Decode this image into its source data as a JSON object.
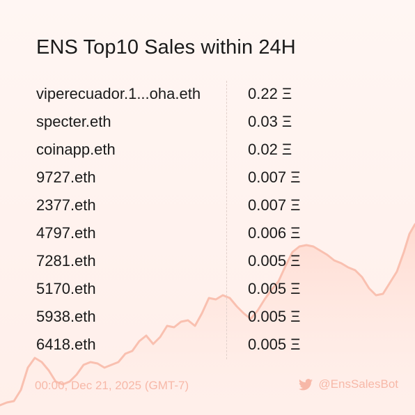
{
  "title": "ENS Top10 Sales within 24H",
  "currency_symbol": "Ξ",
  "sales": [
    {
      "name": "viperecuador.1...oha.eth",
      "price": "0.22 Ξ"
    },
    {
      "name": "specter.eth",
      "price": "0.03 Ξ"
    },
    {
      "name": "coinapp.eth",
      "price": "0.02 Ξ"
    },
    {
      "name": "9727.eth",
      "price": "0.007 Ξ"
    },
    {
      "name": "2377.eth",
      "price": "0.007 Ξ"
    },
    {
      "name": "4797.eth",
      "price": "0.006 Ξ"
    },
    {
      "name": "7281.eth",
      "price": "0.005 Ξ"
    },
    {
      "name": "5170.eth",
      "price": "0.005 Ξ"
    },
    {
      "name": "5938.eth",
      "price": "0.005 Ξ"
    },
    {
      "name": "6418.eth",
      "price": "0.005 Ξ"
    }
  ],
  "footer": {
    "timestamp": "00:00, Dec 21, 2025 (GMT-7)",
    "handle": "@EnsSalesBot",
    "handle_icon": "twitter-bird-icon"
  },
  "colors": {
    "accent": "#f7b8a8",
    "text": "#1a1a1a",
    "background": "#fff3ef"
  }
}
